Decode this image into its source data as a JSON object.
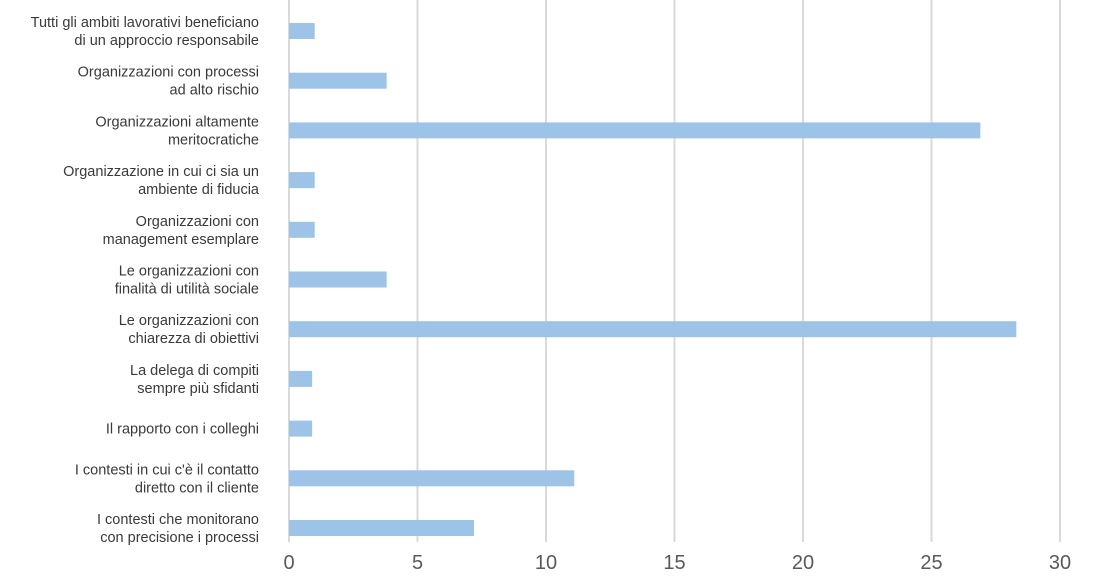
{
  "chart_data": {
    "type": "bar",
    "orientation": "horizontal",
    "title": "",
    "xlabel": "",
    "ylabel": "",
    "categories": [
      [
        "Tutti gli ambiti lavorativi beneficiano",
        "di un approccio responsabile"
      ],
      [
        "Organizzazioni con processi",
        "ad alto rischio"
      ],
      [
        "Organizzazioni altamente",
        "meritocratiche"
      ],
      [
        "Organizzazione in cui ci sia un",
        "ambiente di fiducia"
      ],
      [
        "Organizzazioni con",
        "management esemplare"
      ],
      [
        "Le organizzazioni con",
        "finalità di utilità sociale"
      ],
      [
        "Le organizzazioni con",
        "chiarezza di obiettivi"
      ],
      [
        "La delega di compiti",
        "sempre più sfidanti"
      ],
      [
        "Il rapporto con i colleghi"
      ],
      [
        "I contesti in cui c'è il contatto",
        "diretto con il cliente"
      ],
      [
        "I contesti  che monitorano",
        "con precisione i processi"
      ]
    ],
    "values": [
      1.0,
      3.8,
      26.9,
      1.0,
      1.0,
      3.8,
      28.3,
      0.9,
      0.9,
      11.1,
      7.2
    ],
    "xlim": [
      0,
      30
    ],
    "xticks": [
      "0",
      "5",
      "10",
      "15",
      "20",
      "25",
      "30"
    ],
    "grid": "vertical",
    "legend": "none",
    "colors": {
      "bar": "#9dc3e6",
      "grid": "#d9d9d9",
      "category_text": "#3a3a3a",
      "tick_text": "#595959"
    }
  }
}
